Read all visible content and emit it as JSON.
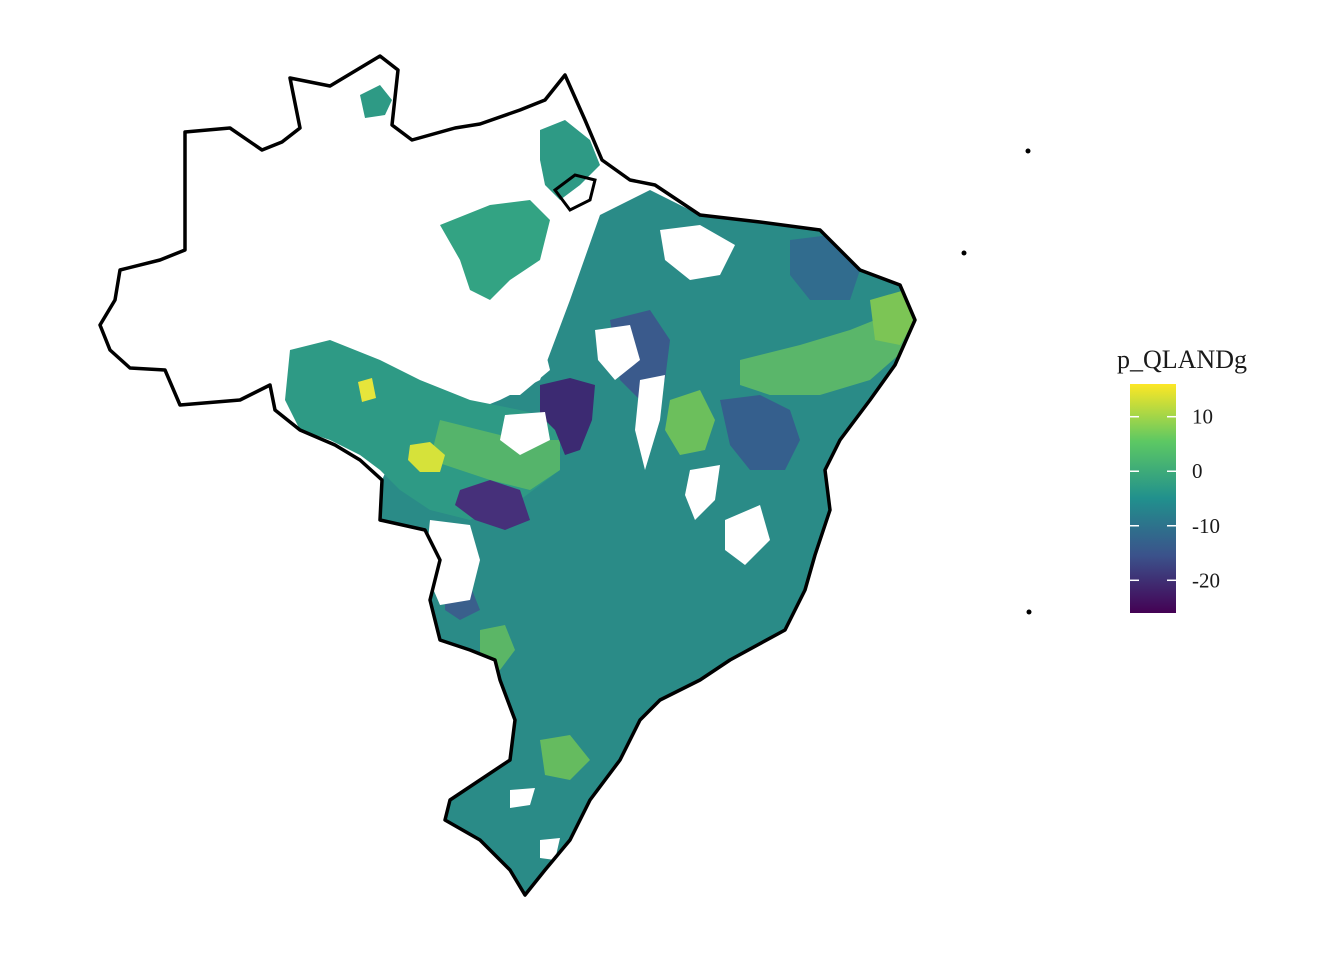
{
  "legend": {
    "title": "p_QLANDg",
    "ticks": [
      {
        "value": 10,
        "label": "10"
      },
      {
        "value": 0,
        "label": "0"
      },
      {
        "value": -10,
        "label": "-10"
      },
      {
        "value": -20,
        "label": "-20"
      }
    ],
    "range": [
      -26,
      16
    ],
    "palette": [
      "#440154",
      "#3b528b",
      "#21908d",
      "#5dc863",
      "#fde725"
    ]
  },
  "colors": {
    "outline": "#000000",
    "background": "#ffffff",
    "no_data": "#ffffff"
  }
}
